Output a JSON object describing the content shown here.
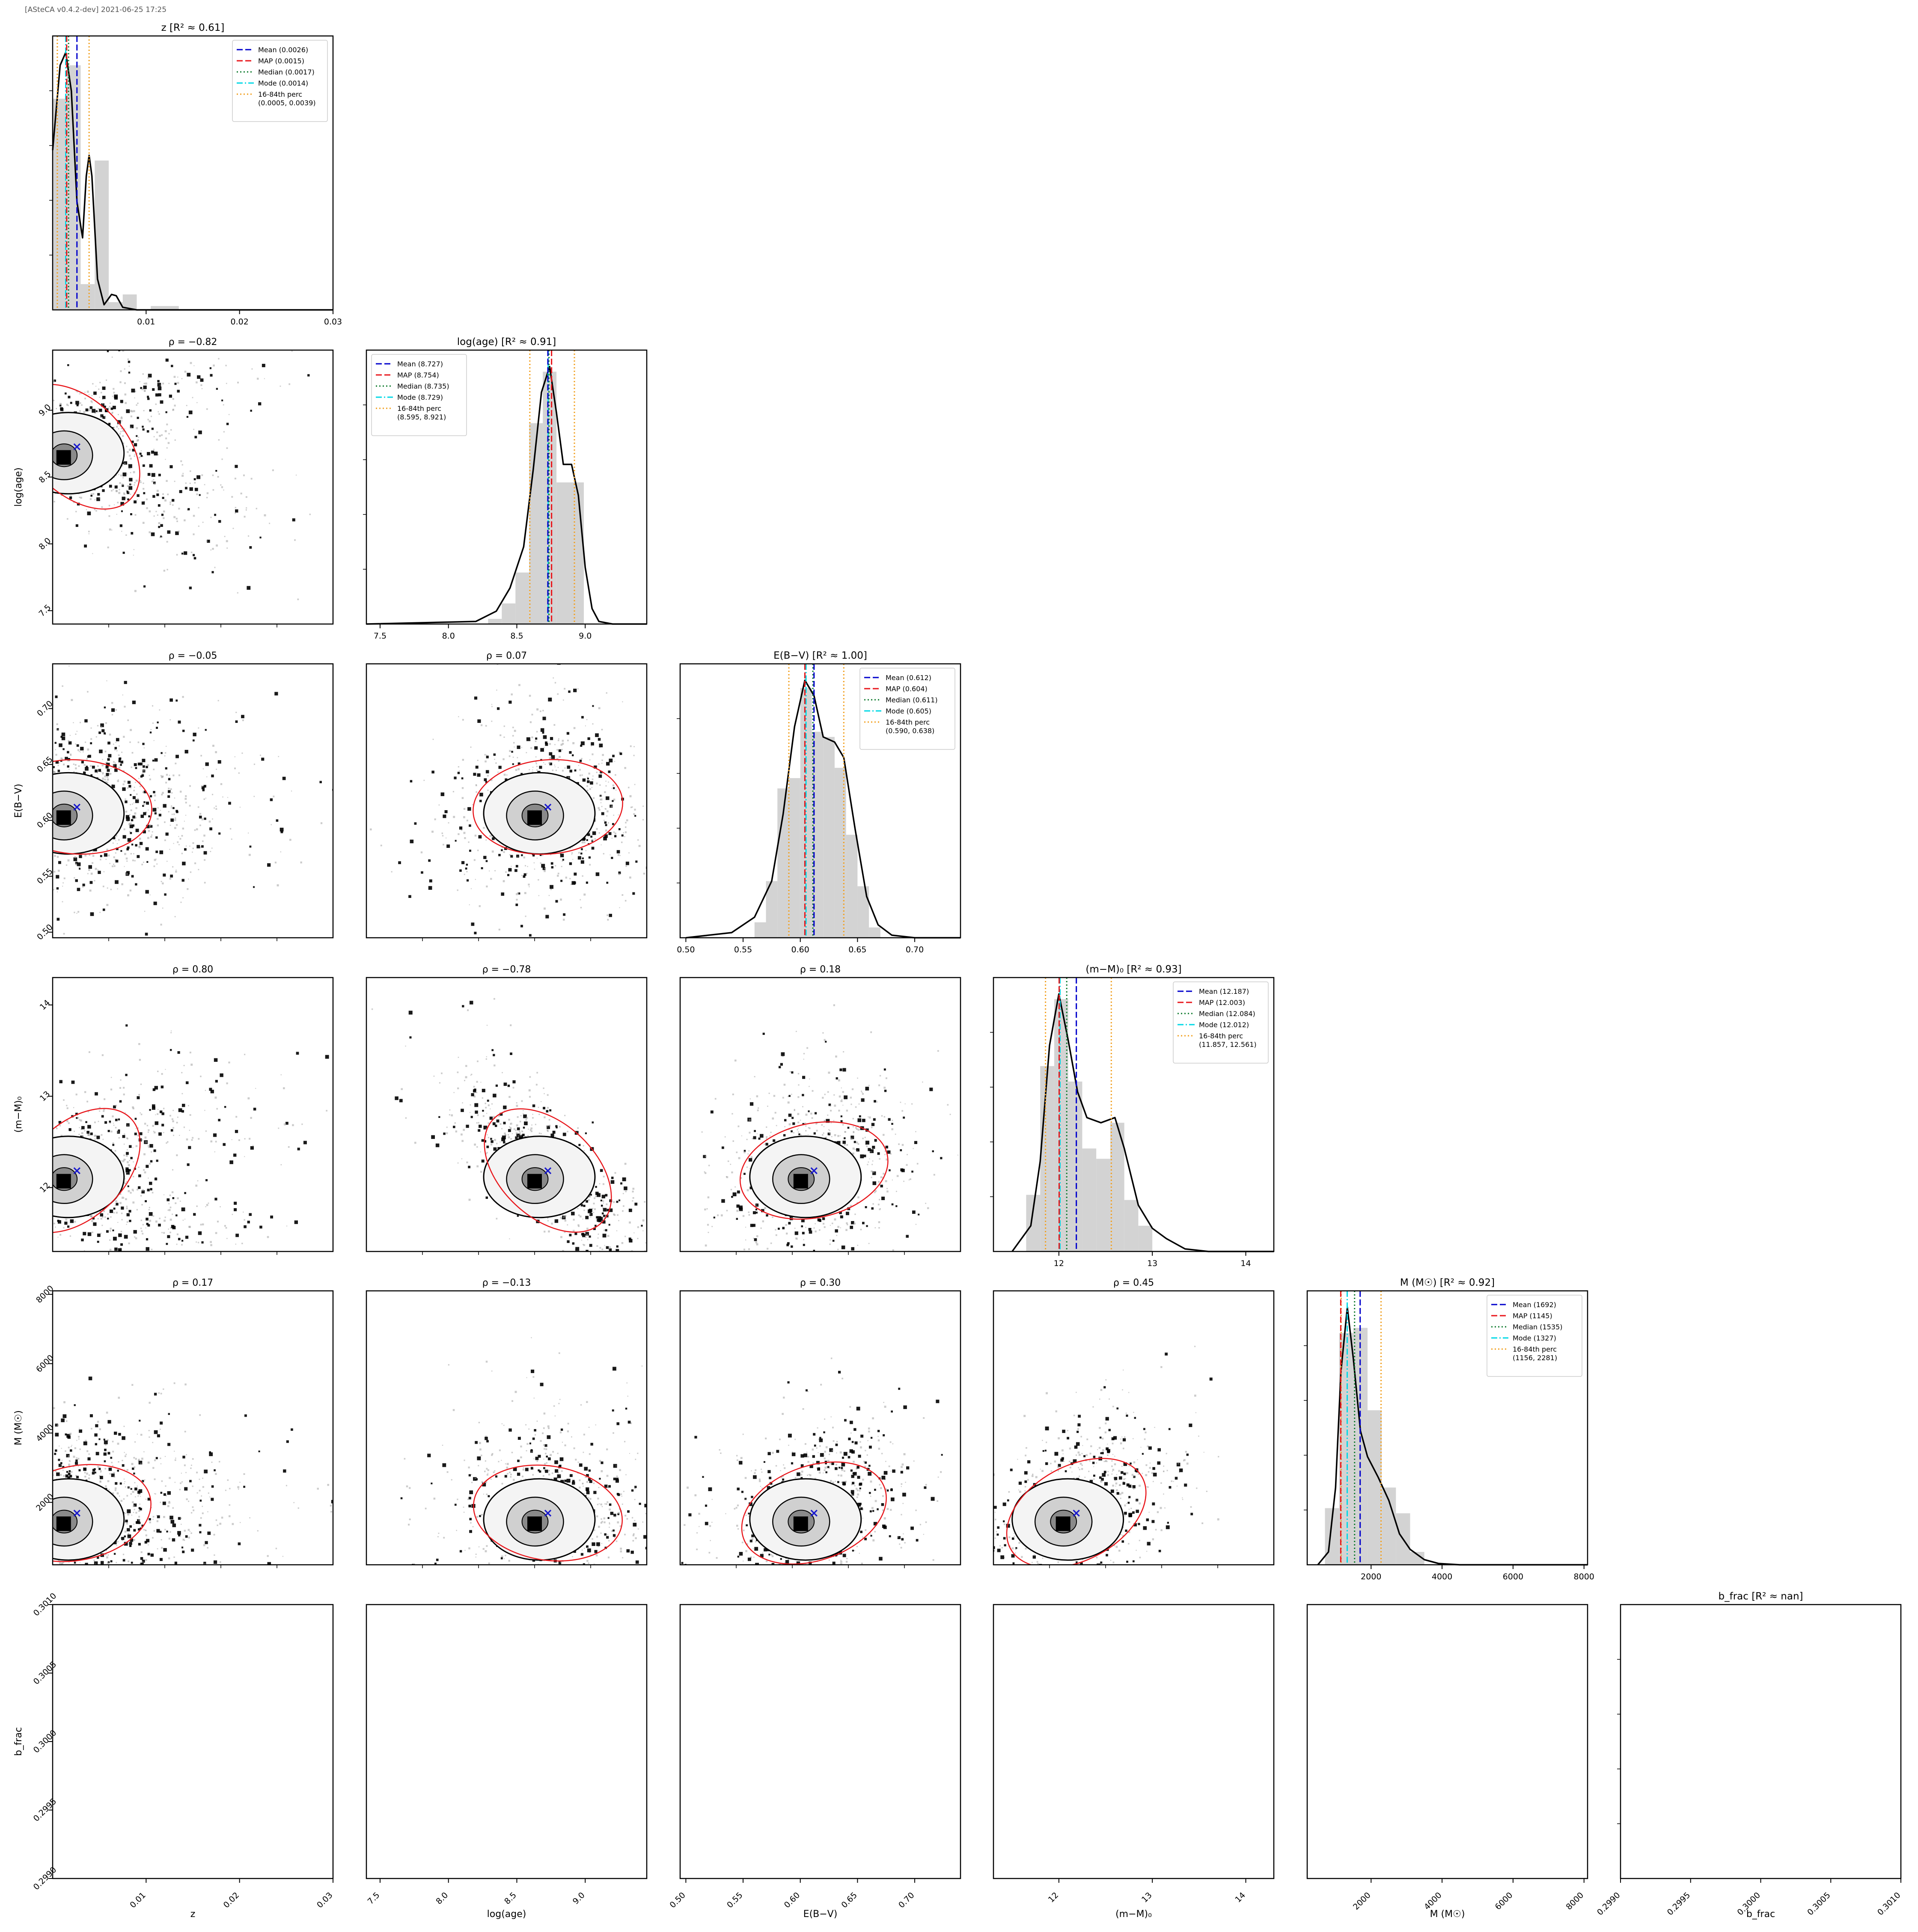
{
  "header": "[ASteCA v0.4.2-dev] 2021-06-25 17:25",
  "colors": {
    "mean": "#0000cc",
    "map": "#e8161b",
    "median": "#0d7a2c",
    "mode": "#00d8e6",
    "perc": "#f2a020",
    "hist_fill": "#d3d3d3",
    "kde_line": "#000000",
    "ellipse": "#e8161b",
    "point_estimate": "#1a1acd"
  },
  "params": [
    {
      "key": "z",
      "label": "z",
      "ticks": [
        "0.01",
        "0.02",
        "0.03"
      ],
      "ylim": [
        0.001,
        0.03
      ]
    },
    {
      "key": "log_age",
      "label": "log(age)",
      "ticks": [
        "7.5",
        "8.0",
        "8.5",
        "9.0"
      ],
      "ylim": [
        7.4,
        9.45
      ]
    },
    {
      "key": "ebv",
      "label": "E(B−V)",
      "ticks": [
        "0.50",
        "0.55",
        "0.60",
        "0.65",
        "0.70"
      ],
      "ylim": [
        0.495,
        0.74
      ]
    },
    {
      "key": "dm",
      "label": "(m−M)₀",
      "ticks": [
        "12",
        "13",
        "14"
      ],
      "ylim": [
        11.3,
        14.3
      ]
    },
    {
      "key": "mass",
      "label": "M (M☉)",
      "ticks": [
        "2000",
        "4000",
        "6000",
        "8000"
      ],
      "ylim": [
        200,
        8100
      ]
    },
    {
      "key": "bfrac",
      "label": "b_frac",
      "ticks": [
        "0.2990",
        "0.2995",
        "0.3000",
        "0.3005",
        "0.3010"
      ],
      "ylim": [
        0.299,
        0.301
      ]
    }
  ],
  "diagonal": [
    {
      "title": "z [R² ≈ 0.61]",
      "legend": [
        "Mean (0.0026)",
        "MAP (0.0015)",
        "Median (0.0017)",
        "Mode (0.0014)",
        "16-84th perc",
        "(0.0005, 0.0039)"
      ]
    },
    {
      "title": "log(age) [R² ≈ 0.91]",
      "legend": [
        "Mean (8.727)",
        "MAP (8.754)",
        "Median (8.735)",
        "Mode (8.729)",
        "16-84th perc",
        "(8.595, 8.921)"
      ]
    },
    {
      "title": "E(B−V) [R² ≈ 1.00]",
      "legend": [
        "Mean (0.612)",
        "MAP (0.604)",
        "Median (0.611)",
        "Mode (0.605)",
        "16-84th perc",
        "(0.590, 0.638)"
      ]
    },
    {
      "title": "(m−M)₀ [R² ≈ 0.93]",
      "legend": [
        "Mean (12.187)",
        "MAP (12.003)",
        "Median (12.084)",
        "Mode (12.012)",
        "16-84th perc",
        "(11.857, 12.561)"
      ]
    },
    {
      "title": "M (M☉) [R² ≈ 0.92]",
      "legend": [
        "Mean (1692)",
        "MAP (1145)",
        "Median (1535)",
        "Mode (1327)",
        "16-84th perc",
        "(1156, 2281)"
      ]
    },
    {
      "title": "b_frac [R² ≈ nan]",
      "legend": []
    }
  ],
  "corr_titles": {
    "1-0": "ρ = −0.82",
    "2-0": "ρ = −0.05",
    "2-1": "ρ = 0.07",
    "3-0": "ρ = 0.80",
    "3-1": "ρ = −0.78",
    "3-2": "ρ = 0.18",
    "4-0": "ρ = 0.17",
    "4-1": "ρ = −0.13",
    "4-2": "ρ = 0.30",
    "4-3": "ρ = 0.45"
  },
  "chart_data": {
    "type": "corner",
    "title": "",
    "marginals": [
      {
        "param": "z",
        "xlim": [
          0.0,
          0.03
        ],
        "mean": 0.0026,
        "map": 0.0015,
        "median": 0.0017,
        "mode": 0.0014,
        "p16": 0.0005,
        "p84": 0.0039,
        "hist_bins": [
          0.0,
          0.0015,
          0.003,
          0.0045,
          0.006,
          0.0075,
          0.009,
          0.0105,
          0.012,
          0.0135,
          0.015,
          0.0165
        ],
        "hist_heights": [
          0.82,
          0.95,
          0.1,
          0.58,
          0.03,
          0.06,
          0.0,
          0.015,
          0.015,
          0.0,
          0.0,
          0.0
        ],
        "kde_x": [
          0.0,
          0.0008,
          0.0014,
          0.002,
          0.0026,
          0.0032,
          0.0036,
          0.0039,
          0.0042,
          0.0048,
          0.0055,
          0.0063,
          0.0068,
          0.0075,
          0.009,
          0.012,
          0.03
        ],
        "kde_y": [
          0.62,
          0.95,
          1.0,
          0.85,
          0.42,
          0.28,
          0.52,
          0.6,
          0.52,
          0.12,
          0.02,
          0.06,
          0.055,
          0.01,
          0.0,
          0.0,
          0.0
        ]
      },
      {
        "param": "log_age",
        "xlim": [
          7.4,
          9.45
        ],
        "mean": 8.727,
        "map": 8.754,
        "median": 8.735,
        "mode": 8.729,
        "p16": 8.595,
        "p84": 8.921,
        "hist_bins": [
          8.29,
          8.39,
          8.49,
          8.59,
          8.69,
          8.79,
          8.89,
          8.99
        ],
        "hist_heights": [
          0.02,
          0.08,
          0.2,
          0.78,
          0.98,
          0.55,
          0.55,
          0.0
        ],
        "kde_x": [
          7.4,
          8.2,
          8.35,
          8.45,
          8.55,
          8.62,
          8.68,
          8.74,
          8.79,
          8.84,
          8.9,
          8.95,
          9.0,
          9.05,
          9.1,
          9.2,
          9.45
        ],
        "kde_y": [
          0.0,
          0.01,
          0.05,
          0.14,
          0.3,
          0.6,
          0.9,
          1.0,
          0.82,
          0.62,
          0.62,
          0.5,
          0.22,
          0.06,
          0.01,
          0.0,
          0.0
        ]
      },
      {
        "param": "ebv",
        "xlim": [
          0.495,
          0.74
        ],
        "mean": 0.612,
        "map": 0.604,
        "median": 0.611,
        "mode": 0.605,
        "p16": 0.59,
        "p84": 0.638,
        "hist_bins": [
          0.56,
          0.57,
          0.58,
          0.59,
          0.6,
          0.61,
          0.62,
          0.63,
          0.64,
          0.65,
          0.66
        ],
        "hist_heights": [
          0.06,
          0.22,
          0.58,
          0.62,
          0.97,
          0.8,
          0.78,
          0.66,
          0.4,
          0.2,
          0.04
        ],
        "kde_x": [
          0.5,
          0.54,
          0.56,
          0.575,
          0.585,
          0.595,
          0.604,
          0.612,
          0.62,
          0.63,
          0.638,
          0.648,
          0.658,
          0.668,
          0.68,
          0.7,
          0.74
        ],
        "kde_y": [
          0.0,
          0.02,
          0.08,
          0.22,
          0.48,
          0.82,
          1.0,
          0.94,
          0.78,
          0.76,
          0.7,
          0.42,
          0.16,
          0.05,
          0.01,
          0.0,
          0.0
        ]
      },
      {
        "param": "dm",
        "xlim": [
          11.3,
          14.3
        ],
        "mean": 12.187,
        "map": 12.003,
        "median": 12.084,
        "mode": 12.012,
        "p16": 11.857,
        "p84": 12.561,
        "hist_bins": [
          11.65,
          11.8,
          11.95,
          12.1,
          12.25,
          12.4,
          12.55,
          12.7,
          12.85
        ],
        "hist_heights": [
          0.22,
          0.72,
          0.98,
          0.66,
          0.4,
          0.36,
          0.5,
          0.2,
          0.1
        ],
        "kde_x": [
          11.5,
          11.7,
          11.8,
          11.9,
          12.0,
          12.1,
          12.2,
          12.3,
          12.45,
          12.6,
          12.7,
          12.85,
          13.0,
          13.15,
          13.35,
          13.6,
          14.3
        ],
        "kde_y": [
          0.0,
          0.1,
          0.35,
          0.8,
          1.0,
          0.82,
          0.62,
          0.52,
          0.5,
          0.52,
          0.4,
          0.18,
          0.09,
          0.05,
          0.01,
          0.0,
          0.0
        ]
      },
      {
        "param": "mass",
        "xlim": [
          200,
          8100
        ],
        "mean": 1692,
        "map": 1145,
        "median": 1535,
        "mode": 1327,
        "p16": 1156,
        "p84": 2281,
        "hist_bins": [
          700,
          1100,
          1500,
          1900,
          2300,
          2700,
          3100,
          3500
        ],
        "hist_heights": [
          0.22,
          0.9,
          0.92,
          0.6,
          0.3,
          0.2,
          0.05,
          0.0
        ],
        "kde_x": [
          500,
          800,
          1000,
          1150,
          1330,
          1500,
          1700,
          1900,
          2200,
          2500,
          2800,
          3100,
          3500,
          3900,
          4500,
          8100
        ],
        "kde_y": [
          0.0,
          0.05,
          0.3,
          0.75,
          1.0,
          0.8,
          0.52,
          0.42,
          0.34,
          0.25,
          0.12,
          0.06,
          0.02,
          0.005,
          0.0,
          0.0
        ]
      },
      {
        "param": "bfrac",
        "xlim": [
          0.299,
          0.301
        ],
        "mean": null,
        "map": null,
        "median": null,
        "mode": null,
        "p16": null,
        "p84": null,
        "hist_bins": [],
        "hist_heights": [],
        "kde_x": [],
        "kde_y": []
      }
    ],
    "pairs": [
      {
        "row": 1,
        "col": 0,
        "rho": -0.82,
        "mean": [
          0.0026,
          8.727
        ]
      },
      {
        "row": 2,
        "col": 0,
        "rho": -0.05,
        "mean": [
          0.0026,
          0.612
        ]
      },
      {
        "row": 2,
        "col": 1,
        "rho": 0.07,
        "mean": [
          8.727,
          0.612
        ]
      },
      {
        "row": 3,
        "col": 0,
        "rho": 0.8,
        "mean": [
          0.0026,
          12.187
        ]
      },
      {
        "row": 3,
        "col": 1,
        "rho": -0.78,
        "mean": [
          8.727,
          12.187
        ]
      },
      {
        "row": 3,
        "col": 2,
        "rho": 0.18,
        "mean": [
          0.612,
          12.187
        ]
      },
      {
        "row": 4,
        "col": 0,
        "rho": 0.17,
        "mean": [
          0.0026,
          1692
        ]
      },
      {
        "row": 4,
        "col": 1,
        "rho": -0.13,
        "mean": [
          8.727,
          1692
        ]
      },
      {
        "row": 4,
        "col": 2,
        "rho": 0.3,
        "mean": [
          0.612,
          1692
        ]
      },
      {
        "row": 4,
        "col": 3,
        "rho": 0.45,
        "mean": [
          12.187,
          1692
        ]
      }
    ],
    "bottom_row_empty": true
  }
}
